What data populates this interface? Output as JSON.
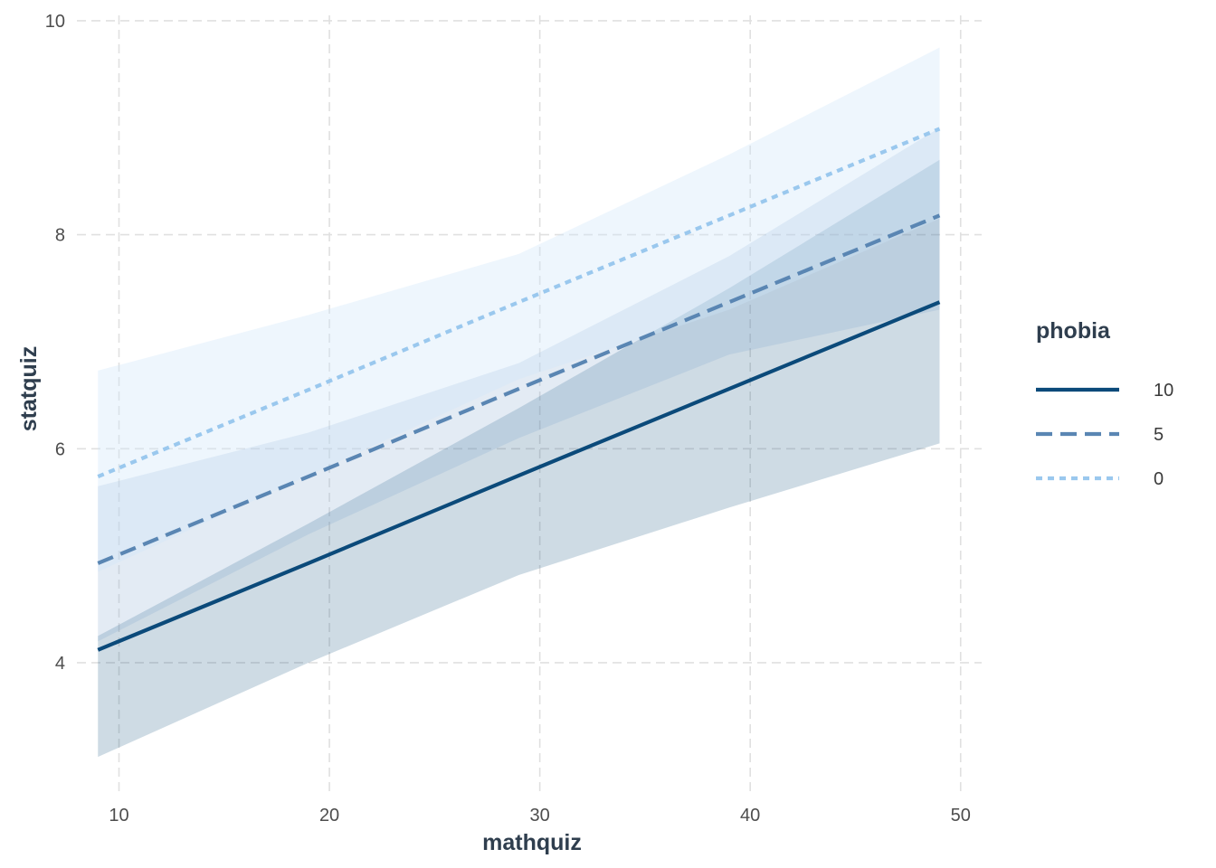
{
  "chart_data": {
    "type": "line",
    "title": "",
    "xlabel": "mathquiz",
    "ylabel": "statquiz",
    "xlim": [
      8,
      51
    ],
    "ylim": [
      2.8,
      10.05
    ],
    "x_ticks": [
      10,
      20,
      30,
      40,
      50
    ],
    "y_ticks": [
      4,
      6,
      8,
      10
    ],
    "grid": true,
    "legend": {
      "title": "phobia",
      "placement": "right"
    },
    "x": [
      9,
      19,
      29,
      39,
      49
    ],
    "series": [
      {
        "name": "10",
        "color": "#0b4a7a",
        "dash": "solid",
        "ribbon_color": "#0b4a7a",
        "values": [
          4.12,
          4.93,
          5.75,
          6.56,
          7.37
        ],
        "lower": [
          3.12,
          4.0,
          4.82,
          5.45,
          6.05
        ],
        "upper": [
          4.25,
          5.3,
          6.38,
          7.5,
          8.7
        ]
      },
      {
        "name": "5",
        "color": "#5a86b3",
        "dash": "dashed",
        "ribbon_color": "#7ea6cc",
        "values": [
          4.93,
          5.74,
          6.56,
          7.37,
          8.18
        ],
        "lower": [
          4.2,
          5.2,
          6.1,
          6.88,
          7.3
        ],
        "upper": [
          5.65,
          6.15,
          6.8,
          7.8,
          9.0
        ]
      },
      {
        "name": "0",
        "color": "#9ac8ee",
        "dash": "dotted",
        "ribbon_color": "#cfe6fa",
        "values": [
          5.74,
          6.55,
          7.37,
          8.18,
          8.99
        ],
        "lower": [
          4.85,
          5.75,
          6.65,
          7.3,
          8.15
        ],
        "upper": [
          6.73,
          7.25,
          7.82,
          8.75,
          9.75
        ]
      }
    ]
  }
}
